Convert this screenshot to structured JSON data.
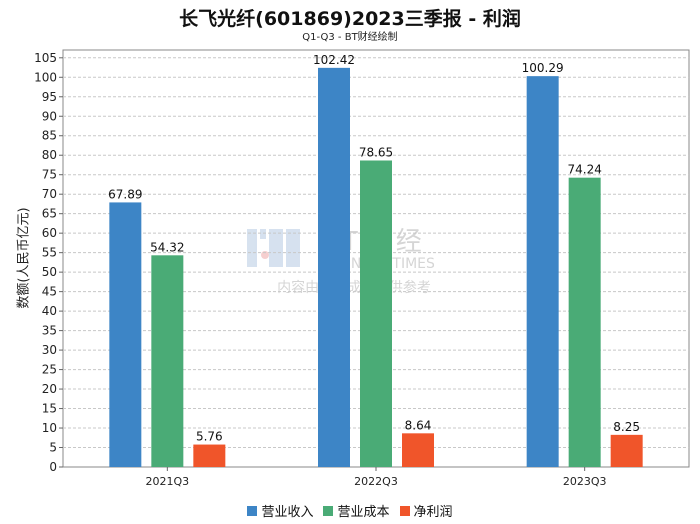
{
  "chart_data": {
    "type": "bar",
    "title": "长飞光纤(601869)2023三季报 - 利润",
    "subtitle": "Q1-Q3 - BT财经绘制",
    "xlabel": "",
    "ylabel": "数额(人民币亿元)",
    "categories": [
      "2021Q3",
      "2022Q3",
      "2023Q3"
    ],
    "series": [
      {
        "name": "营业收入",
        "color": "#3d85c6",
        "values": [
          67.89,
          102.42,
          100.29
        ]
      },
      {
        "name": "营业成本",
        "color": "#4aab76",
        "values": [
          54.32,
          78.65,
          74.24
        ]
      },
      {
        "name": "净利润",
        "color": "#f0552a",
        "values": [
          5.76,
          8.64,
          8.25
        ]
      }
    ],
    "ylim": [
      0,
      107
    ],
    "yticks": [
      0,
      5,
      10,
      15,
      20,
      25,
      30,
      35,
      40,
      45,
      50,
      55,
      60,
      65,
      70,
      75,
      80,
      85,
      90,
      95,
      100,
      105
    ],
    "grid": true,
    "legend_position": "bottom",
    "watermark": {
      "brand": "BT财经",
      "brand_en": "BUSINESS TIMES",
      "note": "内容由AI生成，仅供参考"
    }
  }
}
